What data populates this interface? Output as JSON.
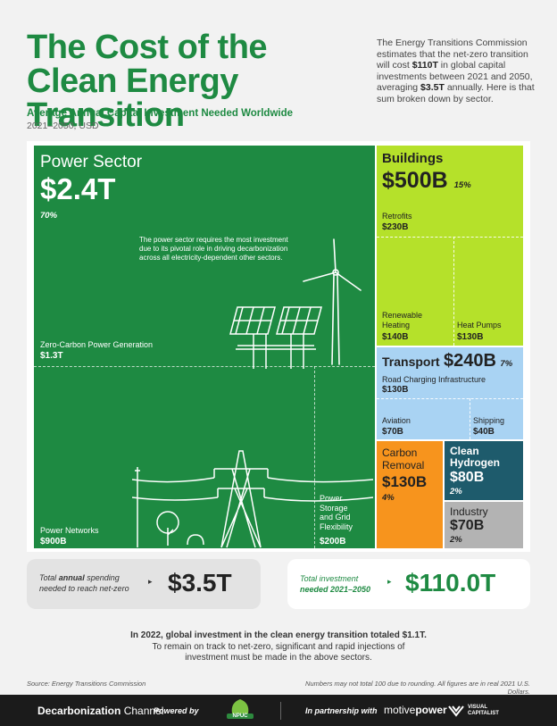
{
  "header": {
    "title": "The Cost of the Clean Energy Transition",
    "intro_1": "The Energy Transitions Commission estimates that the net-zero transition will cost ",
    "intro_b1": "$110T",
    "intro_2": " in global capital investments between 2021 and 2050, averaging ",
    "intro_b2": "$3.5T",
    "intro_3": " annually. Here is that sum broken down by sector.",
    "subtitle": "Average Annual Capital Investment Needed Worldwide",
    "subsubtitle": "2021–2050, USD"
  },
  "chart_data": {
    "type": "treemap",
    "title": "Average Annual Capital Investment Needed Worldwide",
    "subtitle": "2021–2050, USD",
    "total_annual": "$3.5T",
    "sectors": [
      {
        "name": "Power Sector",
        "value_label": "$2.4T",
        "value": 2.4,
        "share": "70%",
        "color": "#1e8a42",
        "note": "The power sector requires the most investment due to its pivotal role in driving decarbonization across all electricity-dependent other sectors.",
        "subsectors": [
          {
            "name": "Zero-Carbon Power Generation",
            "value_label": "$1.3T",
            "value": 1.3
          },
          {
            "name": "Power Networks",
            "value_label": "$900B",
            "value": 0.9
          },
          {
            "name": "Power Storage and Grid Flexibility",
            "value_label": "$200B",
            "value": 0.2
          }
        ]
      },
      {
        "name": "Buildings",
        "value_label": "$500B",
        "value": 0.5,
        "share": "15%",
        "color": "#b5e12a",
        "subsectors": [
          {
            "name": "Retrofits",
            "value_label": "$230B",
            "value": 0.23
          },
          {
            "name": "Renewable Heating",
            "value_label": "$140B",
            "value": 0.14
          },
          {
            "name": "Heat Pumps",
            "value_label": "$130B",
            "value": 0.13
          }
        ]
      },
      {
        "name": "Transport",
        "value_label": "$240B",
        "value": 0.24,
        "share": "7%",
        "color": "#a9d3f3",
        "subsectors": [
          {
            "name": "Road Charging Infrastructure",
            "value_label": "$130B",
            "value": 0.13
          },
          {
            "name": "Aviation",
            "value_label": "$70B",
            "value": 0.07
          },
          {
            "name": "Shipping",
            "value_label": "$40B",
            "value": 0.04
          }
        ]
      },
      {
        "name": "Carbon Removal",
        "value_label": "$130B",
        "value": 0.13,
        "share": "4%",
        "color": "#f7941d"
      },
      {
        "name": "Clean Hydrogen",
        "value_label": "$80B",
        "value": 0.08,
        "share": "2%",
        "color": "#1e5b6c"
      },
      {
        "name": "Industry",
        "value_label": "$70B",
        "value": 0.07,
        "share": "2%",
        "color": "#b3b3b3"
      }
    ]
  },
  "labels": {
    "power_line1": "Power Sector",
    "power_line2": "",
    "buildings_line1": "Buildings",
    "transport_name": "Transport",
    "carbon_line1": "Carbon",
    "carbon_line2": "Removal",
    "hydrogen_line1": "Clean",
    "hydrogen_line2": "Hydrogen",
    "industry_name": "Industry",
    "renew_l1": "Renewable",
    "renew_l2": "Heating",
    "storage_l1": "Power",
    "storage_l2": "Storage",
    "storage_l3": "and Grid",
    "storage_l4": "Flexibility"
  },
  "summary": {
    "annual_l1a": "Total ",
    "annual_l1b": "annual",
    "annual_l1c": " spending",
    "annual_l2": "needed to reach net-zero",
    "annual_value": "$3.5T",
    "total_l1": "Total investment",
    "total_l2": "needed 2021–2050",
    "total_value": "$110.0T"
  },
  "footer": {
    "line1": "In 2022, global investment in the clean energy transition totaled $1.1T.",
    "line2": "To remain on track to net-zero, significant and rapid injections of",
    "line3": "investment must be made in the above sectors.",
    "source": "Source: Energy Transitions Commission",
    "note": "Numbers may not total 100 due to rounding.  All figures are in real 2021 U.S. Dollars.",
    "brand_a": "Decarbonization",
    "brand_b": " Channel",
    "powered": "Powered by",
    "npuc": "NPUC",
    "partner": "In partnership with",
    "motive_a": "motive",
    "motive_b": "power",
    "vc_1": "VISUAL",
    "vc_2": "CAPITALIST"
  },
  "colors": {
    "green": "#1e8a42",
    "lime": "#b5e12a",
    "sky": "#a9d3f3",
    "orange": "#f7941d",
    "teal": "#1e5b6c",
    "grey": "#b3b3b3",
    "title_green": "#1e8a42"
  },
  "icons": [
    "wind-turbine-icon",
    "solar-panel-icon",
    "transmission-tower-icon",
    "tree-icon",
    "bush-icon",
    "npuc-leaf-icon",
    "visual-capitalist-mark-icon"
  ]
}
